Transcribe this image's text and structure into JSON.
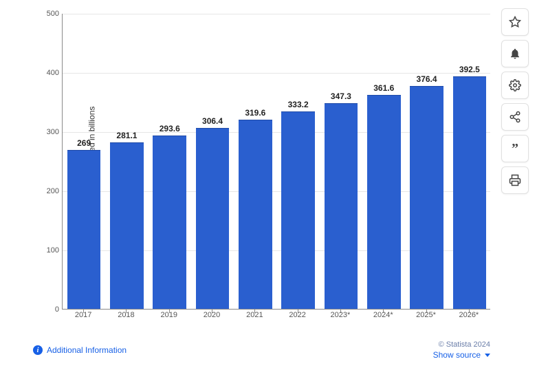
{
  "chart": {
    "type": "bar",
    "y_axis_label": "E-mails sent and received in billions",
    "ylim": [
      0,
      500
    ],
    "ytick_step": 100,
    "yticks": [
      0,
      100,
      200,
      300,
      400,
      500
    ],
    "categories": [
      "2017",
      "2018",
      "2019",
      "2020",
      "2021",
      "2022",
      "2023*",
      "2024*",
      "2025*",
      "2026*"
    ],
    "values": [
      269,
      281.1,
      293.6,
      306.4,
      319.6,
      333.2,
      347.3,
      361.6,
      376.4,
      392.5
    ],
    "value_labels": [
      "269",
      "281.1",
      "293.6",
      "306.4",
      "319.6",
      "333.2",
      "347.3",
      "361.6",
      "376.4",
      "392.5"
    ],
    "bar_color": "#2a5fcf",
    "grid_color": "#e6e6e6",
    "axis_color": "#888888",
    "background_color": "#ffffff",
    "label_fontsize": 12,
    "tick_fontsize": 11,
    "bar_width_ratio": 0.78
  },
  "footer": {
    "additional_info_label": "Additional Information",
    "copyright": "© Statista 2024",
    "show_source_label": "Show source"
  },
  "sidebar": {
    "actions": [
      {
        "name": "star-icon",
        "title": "Favorite"
      },
      {
        "name": "bell-icon",
        "title": "Alert"
      },
      {
        "name": "gear-icon",
        "title": "Settings"
      },
      {
        "name": "share-icon",
        "title": "Share"
      },
      {
        "name": "quote-icon",
        "title": "Citation"
      },
      {
        "name": "print-icon",
        "title": "Print"
      }
    ]
  }
}
